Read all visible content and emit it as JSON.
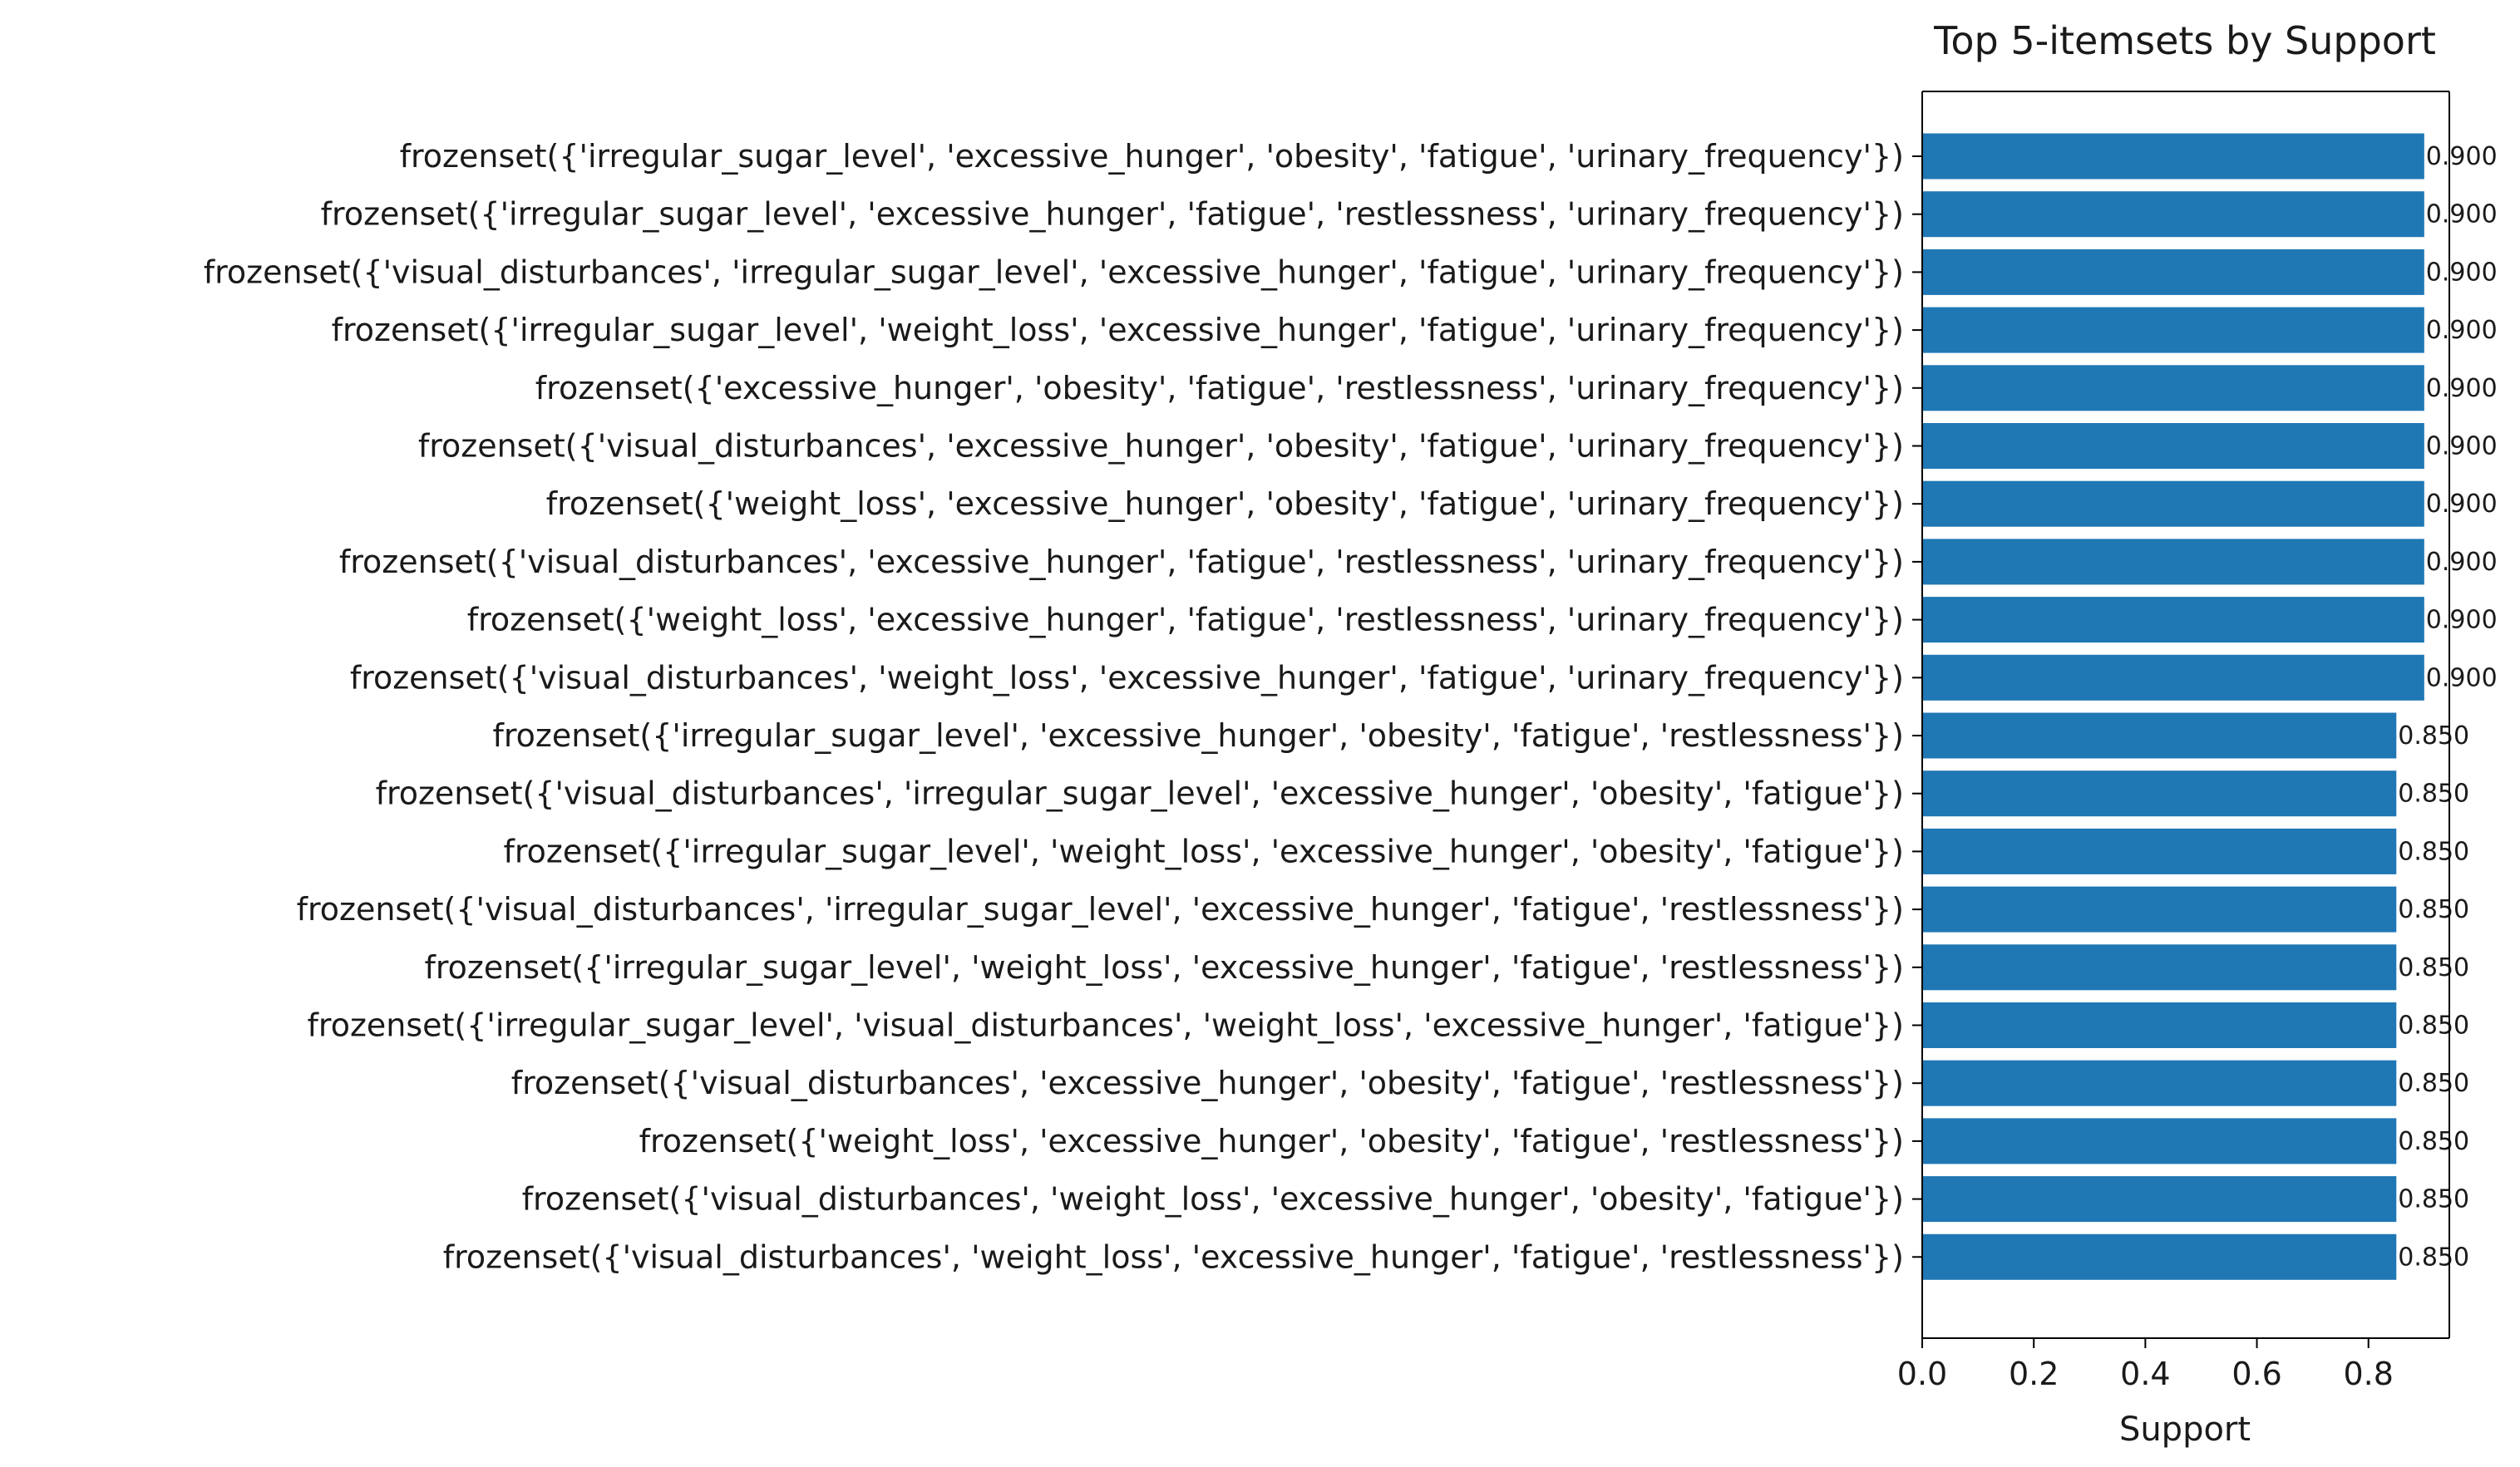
{
  "chart_data": {
    "type": "bar",
    "orientation": "horizontal",
    "title": "Top 5-itemsets by Support",
    "xlabel": "Support",
    "ylabel": "",
    "xlim": [
      0,
      0.945
    ],
    "xticks": [
      "0.0",
      "0.2",
      "0.4",
      "0.6",
      "0.8"
    ],
    "grid": false,
    "bar_color": "#1f77b4",
    "categories": [
      "frozenset({'irregular_sugar_level', 'excessive_hunger', 'obesity', 'fatigue', 'urinary_frequency'})",
      "frozenset({'irregular_sugar_level', 'excessive_hunger', 'fatigue', 'restlessness', 'urinary_frequency'})",
      "frozenset({'visual_disturbances', 'irregular_sugar_level', 'excessive_hunger', 'fatigue', 'urinary_frequency'})",
      "frozenset({'irregular_sugar_level', 'weight_loss', 'excessive_hunger', 'fatigue', 'urinary_frequency'})",
      "frozenset({'excessive_hunger', 'obesity', 'fatigue', 'restlessness', 'urinary_frequency'})",
      "frozenset({'visual_disturbances', 'excessive_hunger', 'obesity', 'fatigue', 'urinary_frequency'})",
      "frozenset({'weight_loss', 'excessive_hunger', 'obesity', 'fatigue', 'urinary_frequency'})",
      "frozenset({'visual_disturbances', 'excessive_hunger', 'fatigue', 'restlessness', 'urinary_frequency'})",
      "frozenset({'weight_loss', 'excessive_hunger', 'fatigue', 'restlessness', 'urinary_frequency'})",
      "frozenset({'visual_disturbances', 'weight_loss', 'excessive_hunger', 'fatigue', 'urinary_frequency'})",
      "frozenset({'irregular_sugar_level', 'excessive_hunger', 'obesity', 'fatigue', 'restlessness'})",
      "frozenset({'visual_disturbances', 'irregular_sugar_level', 'excessive_hunger', 'obesity', 'fatigue'})",
      "frozenset({'irregular_sugar_level', 'weight_loss', 'excessive_hunger', 'obesity', 'fatigue'})",
      "frozenset({'visual_disturbances', 'irregular_sugar_level', 'excessive_hunger', 'fatigue', 'restlessness'})",
      "frozenset({'irregular_sugar_level', 'weight_loss', 'excessive_hunger', 'fatigue', 'restlessness'})",
      "frozenset({'irregular_sugar_level', 'visual_disturbances', 'weight_loss', 'excessive_hunger', 'fatigue'})",
      "frozenset({'visual_disturbances', 'excessive_hunger', 'obesity', 'fatigue', 'restlessness'})",
      "frozenset({'weight_loss', 'excessive_hunger', 'obesity', 'fatigue', 'restlessness'})",
      "frozenset({'visual_disturbances', 'weight_loss', 'excessive_hunger', 'obesity', 'fatigue'})",
      "frozenset({'visual_disturbances', 'weight_loss', 'excessive_hunger', 'fatigue', 'restlessness'})"
    ],
    "values": [
      0.9,
      0.9,
      0.9,
      0.9,
      0.9,
      0.9,
      0.9,
      0.9,
      0.9,
      0.9,
      0.85,
      0.85,
      0.85,
      0.85,
      0.85,
      0.85,
      0.85,
      0.85,
      0.85,
      0.85
    ],
    "value_labels": [
      "0.900",
      "0.900",
      "0.900",
      "0.900",
      "0.900",
      "0.900",
      "0.900",
      "0.900",
      "0.900",
      "0.900",
      "0.850",
      "0.850",
      "0.850",
      "0.850",
      "0.850",
      "0.850",
      "0.850",
      "0.850",
      "0.850",
      "0.850"
    ]
  }
}
